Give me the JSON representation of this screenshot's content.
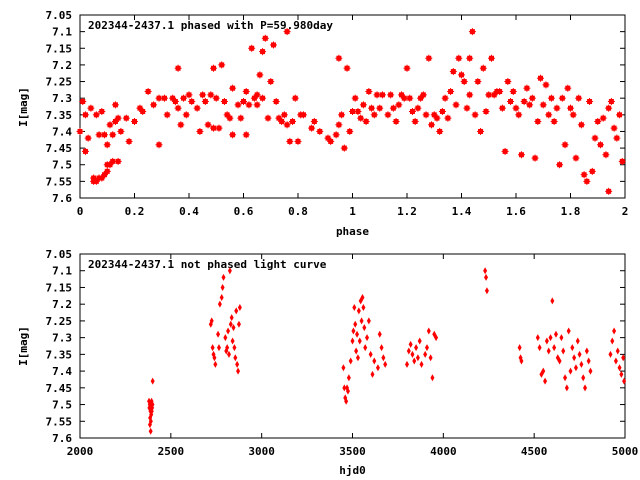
{
  "chart_data": [
    {
      "type": "scatter",
      "title": "202344-2437.1 phased with P=59.980day",
      "xlabel": "phase",
      "ylabel": "I[mag]",
      "xlim": [
        0,
        2
      ],
      "ylim": [
        7.6,
        7.05
      ],
      "y_inverted": true,
      "grid": false,
      "marker": "cross",
      "color": "#ff0000",
      "x_ticks": [
        "0",
        "0.2",
        "0.4",
        "0.6",
        "0.8",
        "1",
        "1.2",
        "1.4",
        "1.6",
        "1.8",
        "2"
      ],
      "y_ticks": [
        "7.05",
        "7.1",
        "7.15",
        "7.2",
        "7.25",
        "7.3",
        "7.35",
        "7.4",
        "7.45",
        "7.5",
        "7.55",
        "7.6"
      ],
      "points": [
        [
          0.0,
          7.4
        ],
        [
          0.01,
          7.31
        ],
        [
          0.02,
          7.35
        ],
        [
          0.02,
          7.46
        ],
        [
          0.03,
          7.42
        ],
        [
          0.04,
          7.33
        ],
        [
          0.05,
          7.55
        ],
        [
          0.05,
          7.54
        ],
        [
          0.06,
          7.35
        ],
        [
          0.06,
          7.55
        ],
        [
          0.07,
          7.41
        ],
        [
          0.07,
          7.54
        ],
        [
          0.08,
          7.34
        ],
        [
          0.08,
          7.54
        ],
        [
          0.09,
          7.41
        ],
        [
          0.09,
          7.53
        ],
        [
          0.1,
          7.44
        ],
        [
          0.1,
          7.5
        ],
        [
          0.1,
          7.52
        ],
        [
          0.11,
          7.38
        ],
        [
          0.11,
          7.5
        ],
        [
          0.12,
          7.41
        ],
        [
          0.12,
          7.49
        ],
        [
          0.13,
          7.37
        ],
        [
          0.13,
          7.32
        ],
        [
          0.14,
          7.49
        ],
        [
          0.14,
          7.36
        ],
        [
          0.15,
          7.4
        ],
        [
          0.17,
          7.36
        ],
        [
          0.18,
          7.43
        ],
        [
          0.2,
          7.37
        ],
        [
          0.22,
          7.33
        ],
        [
          0.23,
          7.34
        ],
        [
          0.25,
          7.28
        ],
        [
          0.27,
          7.32
        ],
        [
          0.29,
          7.44
        ],
        [
          0.29,
          7.3
        ],
        [
          0.31,
          7.3
        ],
        [
          0.32,
          7.35
        ],
        [
          0.34,
          7.3
        ],
        [
          0.35,
          7.31
        ],
        [
          0.36,
          7.21
        ],
        [
          0.36,
          7.33
        ],
        [
          0.37,
          7.38
        ],
        [
          0.38,
          7.3
        ],
        [
          0.39,
          7.35
        ],
        [
          0.4,
          7.29
        ],
        [
          0.41,
          7.31
        ],
        [
          0.43,
          7.33
        ],
        [
          0.44,
          7.4
        ],
        [
          0.45,
          7.29
        ],
        [
          0.46,
          7.31
        ],
        [
          0.47,
          7.38
        ],
        [
          0.48,
          7.29
        ],
        [
          0.49,
          7.39
        ],
        [
          0.49,
          7.21
        ],
        [
          0.5,
          7.3
        ],
        [
          0.51,
          7.39
        ],
        [
          0.52,
          7.2
        ],
        [
          0.53,
          7.31
        ],
        [
          0.54,
          7.35
        ],
        [
          0.55,
          7.36
        ],
        [
          0.56,
          7.41
        ],
        [
          0.56,
          7.27
        ],
        [
          0.58,
          7.32
        ],
        [
          0.59,
          7.36
        ],
        [
          0.6,
          7.31
        ],
        [
          0.61,
          7.28
        ],
        [
          0.61,
          7.41
        ],
        [
          0.62,
          7.32
        ],
        [
          0.63,
          7.15
        ],
        [
          0.64,
          7.3
        ],
        [
          0.65,
          7.29
        ],
        [
          0.65,
          7.32
        ],
        [
          0.66,
          7.23
        ],
        [
          0.67,
          7.3
        ],
        [
          0.67,
          7.16
        ],
        [
          0.68,
          7.12
        ],
        [
          0.69,
          7.36
        ],
        [
          0.7,
          7.25
        ],
        [
          0.71,
          7.14
        ],
        [
          0.72,
          7.31
        ],
        [
          0.73,
          7.36
        ],
        [
          0.74,
          7.37
        ],
        [
          0.75,
          7.35
        ],
        [
          0.76,
          7.38
        ],
        [
          0.76,
          7.1
        ],
        [
          0.77,
          7.43
        ],
        [
          0.78,
          7.37
        ],
        [
          0.79,
          7.3
        ],
        [
          0.8,
          7.43
        ],
        [
          0.81,
          7.35
        ],
        [
          0.82,
          7.35
        ],
        [
          0.85,
          7.39
        ],
        [
          0.86,
          7.37
        ],
        [
          0.88,
          7.4
        ],
        [
          0.91,
          7.42
        ],
        [
          0.92,
          7.43
        ],
        [
          0.94,
          7.41
        ],
        [
          0.95,
          7.38
        ],
        [
          0.95,
          7.18
        ],
        [
          0.96,
          7.35
        ],
        [
          0.97,
          7.45
        ],
        [
          0.98,
          7.21
        ],
        [
          0.99,
          7.4
        ],
        [
          1.0,
          7.34
        ],
        [
          1.01,
          7.3
        ],
        [
          1.02,
          7.34
        ],
        [
          1.03,
          7.36
        ],
        [
          1.04,
          7.32
        ],
        [
          1.05,
          7.37
        ],
        [
          1.06,
          7.28
        ],
        [
          1.07,
          7.33
        ],
        [
          1.08,
          7.35
        ],
        [
          1.09,
          7.29
        ],
        [
          1.1,
          7.33
        ],
        [
          1.11,
          7.29
        ],
        [
          1.13,
          7.35
        ],
        [
          1.14,
          7.29
        ],
        [
          1.15,
          7.33
        ],
        [
          1.16,
          7.37
        ],
        [
          1.17,
          7.32
        ],
        [
          1.18,
          7.29
        ],
        [
          1.19,
          7.3
        ],
        [
          1.2,
          7.21
        ],
        [
          1.21,
          7.3
        ],
        [
          1.22,
          7.34
        ],
        [
          1.23,
          7.37
        ],
        [
          1.24,
          7.33
        ],
        [
          1.25,
          7.3
        ],
        [
          1.26,
          7.29
        ],
        [
          1.27,
          7.35
        ],
        [
          1.28,
          7.18
        ],
        [
          1.29,
          7.38
        ],
        [
          1.3,
          7.35
        ],
        [
          1.31,
          7.36
        ],
        [
          1.32,
          7.4
        ],
        [
          1.33,
          7.34
        ],
        [
          1.34,
          7.3
        ],
        [
          1.35,
          7.36
        ],
        [
          1.36,
          7.28
        ],
        [
          1.37,
          7.22
        ],
        [
          1.38,
          7.32
        ],
        [
          1.39,
          7.18
        ],
        [
          1.4,
          7.23
        ],
        [
          1.41,
          7.25
        ],
        [
          1.42,
          7.33
        ],
        [
          1.43,
          7.29
        ],
        [
          1.43,
          7.18
        ],
        [
          1.44,
          7.1
        ],
        [
          1.45,
          7.35
        ],
        [
          1.46,
          7.25
        ],
        [
          1.47,
          7.4
        ],
        [
          1.48,
          7.21
        ],
        [
          1.49,
          7.34
        ],
        [
          1.5,
          7.29
        ],
        [
          1.51,
          7.18
        ],
        [
          1.52,
          7.29
        ],
        [
          1.53,
          7.28
        ],
        [
          1.54,
          7.28
        ],
        [
          1.55,
          7.33
        ],
        [
          1.56,
          7.46
        ],
        [
          1.57,
          7.25
        ],
        [
          1.58,
          7.31
        ],
        [
          1.59,
          7.28
        ],
        [
          1.6,
          7.33
        ],
        [
          1.61,
          7.35
        ],
        [
          1.62,
          7.47
        ],
        [
          1.63,
          7.31
        ],
        [
          1.64,
          7.27
        ],
        [
          1.65,
          7.32
        ],
        [
          1.66,
          7.3
        ],
        [
          1.67,
          7.48
        ],
        [
          1.68,
          7.37
        ],
        [
          1.69,
          7.24
        ],
        [
          1.7,
          7.32
        ],
        [
          1.71,
          7.26
        ],
        [
          1.72,
          7.35
        ],
        [
          1.73,
          7.3
        ],
        [
          1.74,
          7.37
        ],
        [
          1.75,
          7.33
        ],
        [
          1.76,
          7.5
        ],
        [
          1.77,
          7.3
        ],
        [
          1.78,
          7.44
        ],
        [
          1.79,
          7.27
        ],
        [
          1.8,
          7.33
        ],
        [
          1.81,
          7.35
        ],
        [
          1.82,
          7.48
        ],
        [
          1.83,
          7.3
        ],
        [
          1.84,
          7.38
        ],
        [
          1.85,
          7.53
        ],
        [
          1.86,
          7.55
        ],
        [
          1.87,
          7.31
        ],
        [
          1.88,
          7.52
        ],
        [
          1.89,
          7.42
        ],
        [
          1.9,
          7.37
        ],
        [
          1.91,
          7.44
        ],
        [
          1.92,
          7.36
        ],
        [
          1.93,
          7.47
        ],
        [
          1.94,
          7.33
        ],
        [
          1.94,
          7.58
        ],
        [
          1.95,
          7.31
        ],
        [
          1.96,
          7.39
        ],
        [
          1.97,
          7.42
        ],
        [
          1.98,
          7.35
        ],
        [
          1.99,
          7.49
        ]
      ]
    },
    {
      "type": "scatter",
      "title": "202344-2437.1 not phased light curve",
      "xlabel": "hjd0",
      "ylabel": "I[mag]",
      "xlim": [
        2000,
        5000
      ],
      "ylim": [
        7.6,
        7.05
      ],
      "y_inverted": true,
      "grid": false,
      "marker": "diamond",
      "color": "#ff0000",
      "x_ticks": [
        "2000",
        "2500",
        "3000",
        "3500",
        "4000",
        "4500",
        "5000"
      ],
      "y_ticks": [
        "7.05",
        "7.1",
        "7.15",
        "7.2",
        "7.25",
        "7.3",
        "7.35",
        "7.4",
        "7.45",
        "7.5",
        "7.55",
        "7.6"
      ],
      "points": [
        [
          2380,
          7.49
        ],
        [
          2382,
          7.51
        ],
        [
          2384,
          7.5
        ],
        [
          2385,
          7.56
        ],
        [
          2386,
          7.54
        ],
        [
          2388,
          7.52
        ],
        [
          2389,
          7.58
        ],
        [
          2390,
          7.55
        ],
        [
          2391,
          7.5
        ],
        [
          2392,
          7.53
        ],
        [
          2394,
          7.49
        ],
        [
          2395,
          7.52
        ],
        [
          2397,
          7.51
        ],
        [
          2399,
          7.5
        ],
        [
          2400,
          7.43
        ],
        [
          2720,
          7.26
        ],
        [
          2725,
          7.25
        ],
        [
          2730,
          7.33
        ],
        [
          2735,
          7.35
        ],
        [
          2740,
          7.36
        ],
        [
          2745,
          7.38
        ],
        [
          2760,
          7.29
        ],
        [
          2765,
          7.33
        ],
        [
          2770,
          7.2
        ],
        [
          2780,
          7.18
        ],
        [
          2785,
          7.15
        ],
        [
          2790,
          7.12
        ],
        [
          2800,
          7.3
        ],
        [
          2805,
          7.34
        ],
        [
          2810,
          7.33
        ],
        [
          2815,
          7.28
        ],
        [
          2820,
          7.35
        ],
        [
          2825,
          7.1
        ],
        [
          2830,
          7.26
        ],
        [
          2835,
          7.24
        ],
        [
          2840,
          7.31
        ],
        [
          2845,
          7.27
        ],
        [
          2850,
          7.33
        ],
        [
          2855,
          7.36
        ],
        [
          2860,
          7.22
        ],
        [
          2865,
          7.38
        ],
        [
          2870,
          7.4
        ],
        [
          2875,
          7.26
        ],
        [
          2880,
          7.21
        ],
        [
          3450,
          7.39
        ],
        [
          3455,
          7.45
        ],
        [
          3460,
          7.48
        ],
        [
          3465,
          7.49
        ],
        [
          3470,
          7.45
        ],
        [
          3475,
          7.46
        ],
        [
          3480,
          7.42
        ],
        [
          3490,
          7.37
        ],
        [
          3500,
          7.31
        ],
        [
          3505,
          7.28
        ],
        [
          3510,
          7.21
        ],
        [
          3515,
          7.26
        ],
        [
          3520,
          7.34
        ],
        [
          3525,
          7.29
        ],
        [
          3530,
          7.36
        ],
        [
          3535,
          7.22
        ],
        [
          3540,
          7.31
        ],
        [
          3545,
          7.19
        ],
        [
          3550,
          7.25
        ],
        [
          3555,
          7.18
        ],
        [
          3560,
          7.21
        ],
        [
          3565,
          7.27
        ],
        [
          3570,
          7.33
        ],
        [
          3580,
          7.3
        ],
        [
          3590,
          7.25
        ],
        [
          3600,
          7.35
        ],
        [
          3610,
          7.41
        ],
        [
          3620,
          7.37
        ],
        [
          3640,
          7.39
        ],
        [
          3650,
          7.29
        ],
        [
          3660,
          7.33
        ],
        [
          3670,
          7.36
        ],
        [
          3680,
          7.38
        ],
        [
          3800,
          7.38
        ],
        [
          3810,
          7.34
        ],
        [
          3820,
          7.32
        ],
        [
          3830,
          7.35
        ],
        [
          3840,
          7.37
        ],
        [
          3850,
          7.33
        ],
        [
          3860,
          7.36
        ],
        [
          3870,
          7.31
        ],
        [
          3880,
          7.38
        ],
        [
          3900,
          7.35
        ],
        [
          3910,
          7.33
        ],
        [
          3920,
          7.28
        ],
        [
          3930,
          7.36
        ],
        [
          3940,
          7.42
        ],
        [
          3950,
          7.29
        ],
        [
          3960,
          7.3
        ],
        [
          4230,
          7.1
        ],
        [
          4235,
          7.12
        ],
        [
          4240,
          7.16
        ],
        [
          4420,
          7.33
        ],
        [
          4425,
          7.36
        ],
        [
          4430,
          7.37
        ],
        [
          4520,
          7.3
        ],
        [
          4530,
          7.33
        ],
        [
          4540,
          7.41
        ],
        [
          4550,
          7.4
        ],
        [
          4560,
          7.43
        ],
        [
          4570,
          7.31
        ],
        [
          4580,
          7.34
        ],
        [
          4590,
          7.3
        ],
        [
          4600,
          7.19
        ],
        [
          4610,
          7.33
        ],
        [
          4620,
          7.29
        ],
        [
          4630,
          7.36
        ],
        [
          4640,
          7.37
        ],
        [
          4650,
          7.3
        ],
        [
          4660,
          7.34
        ],
        [
          4670,
          7.42
        ],
        [
          4680,
          7.45
        ],
        [
          4690,
          7.28
        ],
        [
          4700,
          7.4
        ],
        [
          4710,
          7.33
        ],
        [
          4720,
          7.36
        ],
        [
          4730,
          7.39
        ],
        [
          4740,
          7.31
        ],
        [
          4750,
          7.35
        ],
        [
          4760,
          7.38
        ],
        [
          4770,
          7.42
        ],
        [
          4780,
          7.45
        ],
        [
          4790,
          7.34
        ],
        [
          4800,
          7.37
        ],
        [
          4810,
          7.4
        ],
        [
          4920,
          7.35
        ],
        [
          4930,
          7.31
        ],
        [
          4940,
          7.28
        ],
        [
          4950,
          7.37
        ],
        [
          4960,
          7.34
        ],
        [
          4970,
          7.39
        ],
        [
          4980,
          7.41
        ],
        [
          4990,
          7.36
        ],
        [
          4995,
          7.43
        ]
      ]
    }
  ]
}
